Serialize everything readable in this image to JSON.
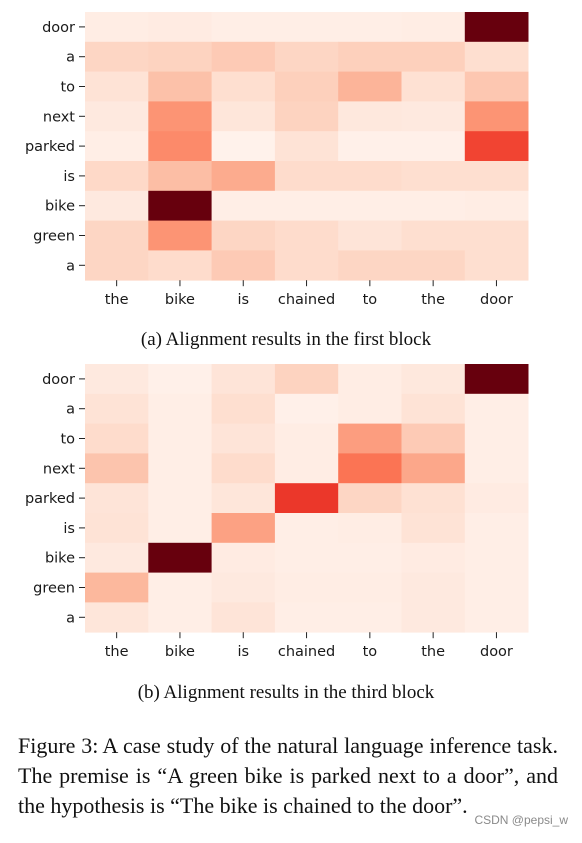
{
  "chart_data": [
    {
      "type": "heatmap",
      "subcaption": "(a) Alignment results in the first block",
      "x_labels": [
        "the",
        "bike",
        "is",
        "chained",
        "to",
        "the",
        "door"
      ],
      "y_labels": [
        "door",
        "a",
        "to",
        "next",
        "parked",
        "is",
        "bike",
        "green",
        "a"
      ],
      "colormap": "Reds",
      "values": [
        [
          0.05,
          0.06,
          0.04,
          0.04,
          0.04,
          0.05,
          1.0
        ],
        [
          0.16,
          0.17,
          0.2,
          0.16,
          0.18,
          0.18,
          0.13
        ],
        [
          0.11,
          0.23,
          0.13,
          0.18,
          0.27,
          0.12,
          0.21
        ],
        [
          0.07,
          0.37,
          0.09,
          0.17,
          0.08,
          0.07,
          0.37
        ],
        [
          0.04,
          0.4,
          0.02,
          0.11,
          0.03,
          0.03,
          0.6
        ],
        [
          0.15,
          0.24,
          0.3,
          0.14,
          0.14,
          0.13,
          0.13
        ],
        [
          0.07,
          1.0,
          0.04,
          0.04,
          0.04,
          0.04,
          0.05
        ],
        [
          0.16,
          0.37,
          0.16,
          0.14,
          0.1,
          0.13,
          0.13
        ],
        [
          0.16,
          0.14,
          0.2,
          0.14,
          0.16,
          0.16,
          0.13
        ]
      ]
    },
    {
      "type": "heatmap",
      "subcaption": "(b) Alignment results in the third block",
      "x_labels": [
        "the",
        "bike",
        "is",
        "chained",
        "to",
        "the",
        "door"
      ],
      "y_labels": [
        "door",
        "a",
        "to",
        "next",
        "parked",
        "is",
        "bike",
        "green",
        "a"
      ],
      "colormap": "Reds",
      "values": [
        [
          0.07,
          0.03,
          0.1,
          0.17,
          0.05,
          0.08,
          1.0
        ],
        [
          0.11,
          0.04,
          0.13,
          0.03,
          0.05,
          0.11,
          0.04
        ],
        [
          0.14,
          0.04,
          0.1,
          0.05,
          0.34,
          0.2,
          0.04
        ],
        [
          0.22,
          0.04,
          0.14,
          0.05,
          0.47,
          0.31,
          0.04
        ],
        [
          0.1,
          0.04,
          0.09,
          0.64,
          0.16,
          0.12,
          0.06
        ],
        [
          0.11,
          0.04,
          0.33,
          0.04,
          0.05,
          0.11,
          0.04
        ],
        [
          0.07,
          1.0,
          0.06,
          0.04,
          0.04,
          0.06,
          0.04
        ],
        [
          0.26,
          0.04,
          0.07,
          0.05,
          0.05,
          0.07,
          0.04
        ],
        [
          0.09,
          0.04,
          0.1,
          0.04,
          0.04,
          0.07,
          0.04
        ]
      ]
    }
  ],
  "caption": {
    "label": "Figure 3:",
    "text": "A case study of the natural language inference task. The premise is “A green bike is parked next to a door”, and the hypothesis is “The bike is chained to the door”."
  },
  "watermark": "CSDN @pepsi_w"
}
